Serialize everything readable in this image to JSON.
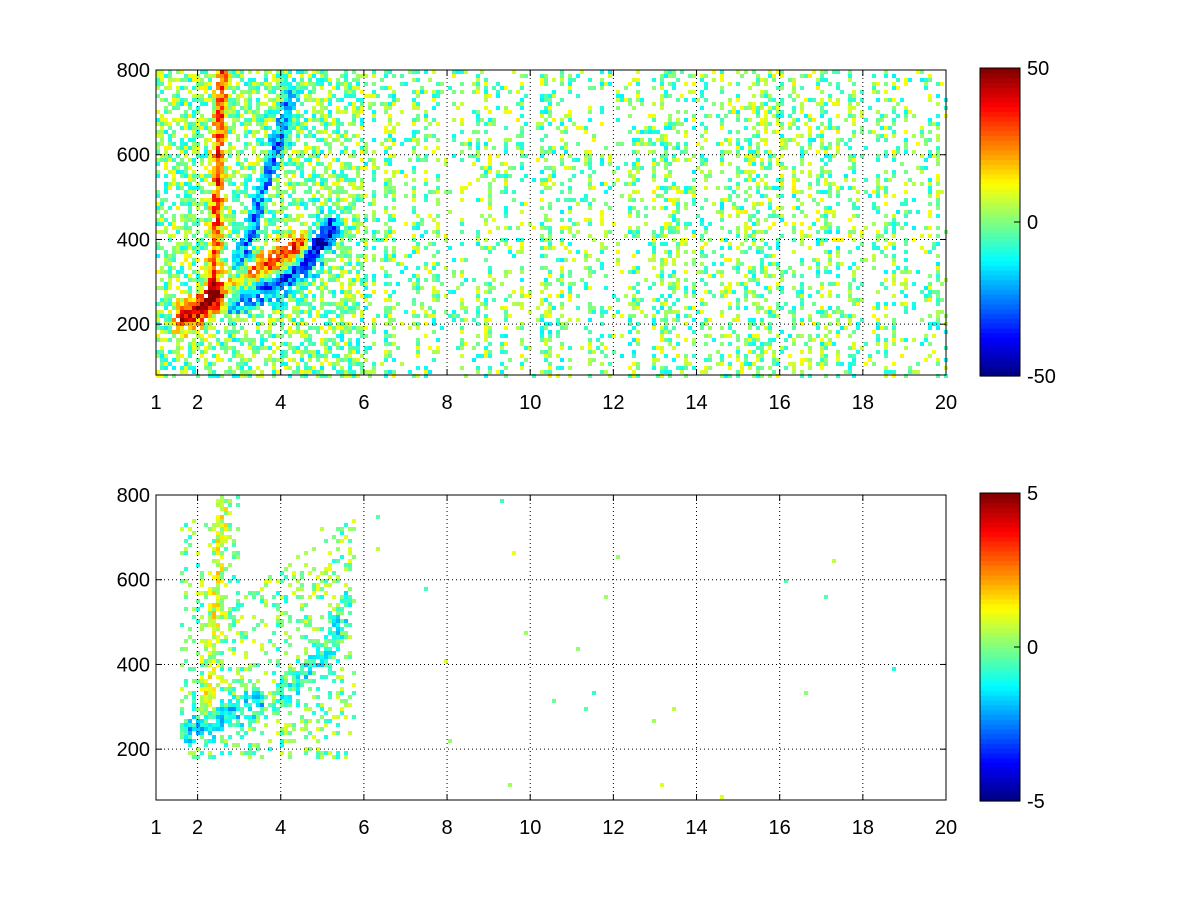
{
  "chart_data": [
    {
      "type": "heatmap",
      "title": "",
      "xlabel": "",
      "ylabel": "",
      "xlim": [
        1,
        20
      ],
      "ylim": [
        80,
        800
      ],
      "xticks": [
        1,
        2,
        4,
        6,
        8,
        10,
        12,
        14,
        16,
        18,
        20
      ],
      "xtick_labels": [
        "1",
        "2",
        "4",
        "6",
        "8",
        "10",
        "12",
        "14",
        "16",
        "18",
        "20"
      ],
      "yticks": [
        200,
        400,
        600,
        800
      ],
      "ytick_labels": [
        "200",
        "400",
        "600",
        "800"
      ],
      "grid": true,
      "colorbar": {
        "colormap": "jet",
        "clim": [
          -50,
          50
        ],
        "ticks": [
          -50,
          0,
          50
        ],
        "tick_labels": [
          "-50",
          "0",
          "50"
        ]
      },
      "features": [
        {
          "kind": "ridge",
          "value": 40,
          "points": [
            [
              1.6,
              215
            ],
            [
              2.1,
              240
            ],
            [
              2.5,
              265
            ],
            [
              3.0,
              290
            ],
            [
              3.5,
              320
            ],
            [
              4.0,
              350
            ],
            [
              4.5,
              385
            ]
          ]
        },
        {
          "kind": "ridge",
          "value": 30,
          "points": [
            [
              2.35,
              290
            ],
            [
              2.45,
              420
            ],
            [
              2.5,
              560
            ],
            [
              2.55,
              700
            ],
            [
              2.6,
              790
            ]
          ]
        },
        {
          "kind": "ridge",
          "value": -40,
          "points": [
            [
              2.8,
              260
            ],
            [
              3.2,
              275
            ],
            [
              3.6,
              290
            ],
            [
              4.0,
              305
            ],
            [
              4.4,
              330
            ],
            [
              4.8,
              370
            ],
            [
              5.2,
              420
            ]
          ]
        },
        {
          "kind": "ridge",
          "value": -25,
          "points": [
            [
              3.0,
              330
            ],
            [
              3.3,
              420
            ],
            [
              3.6,
              520
            ],
            [
              3.9,
              620
            ],
            [
              4.2,
              720
            ]
          ]
        }
      ]
    },
    {
      "type": "heatmap",
      "title": "",
      "xlabel": "",
      "ylabel": "",
      "xlim": [
        1,
        20
      ],
      "ylim": [
        80,
        800
      ],
      "xticks": [
        1,
        2,
        4,
        6,
        8,
        10,
        12,
        14,
        16,
        18,
        20
      ],
      "xtick_labels": [
        "1",
        "2",
        "4",
        "6",
        "8",
        "10",
        "12",
        "14",
        "16",
        "18",
        "20"
      ],
      "yticks": [
        200,
        400,
        600,
        800
      ],
      "ytick_labels": [
        "200",
        "400",
        "600",
        "800"
      ],
      "grid": true,
      "colorbar": {
        "colormap": "jet",
        "clim": [
          -5,
          5
        ],
        "ticks": [
          -5,
          0,
          5
        ],
        "tick_labels": [
          "-5",
          "0",
          "5"
        ]
      },
      "features": [
        {
          "kind": "ridge",
          "value": 1,
          "points": [
            [
              2.2,
              300
            ],
            [
              2.4,
              450
            ],
            [
              2.5,
              600
            ],
            [
              2.6,
              760
            ]
          ]
        },
        {
          "kind": "ridge",
          "value": -1.5,
          "points": [
            [
              1.7,
              240
            ],
            [
              2.3,
              260
            ],
            [
              3.0,
              290
            ],
            [
              3.5,
              310
            ]
          ]
        },
        {
          "kind": "ridge",
          "value": -1,
          "points": [
            [
              4.0,
              320
            ],
            [
              4.6,
              380
            ],
            [
              5.2,
              440
            ],
            [
              5.6,
              540
            ]
          ]
        }
      ]
    }
  ]
}
